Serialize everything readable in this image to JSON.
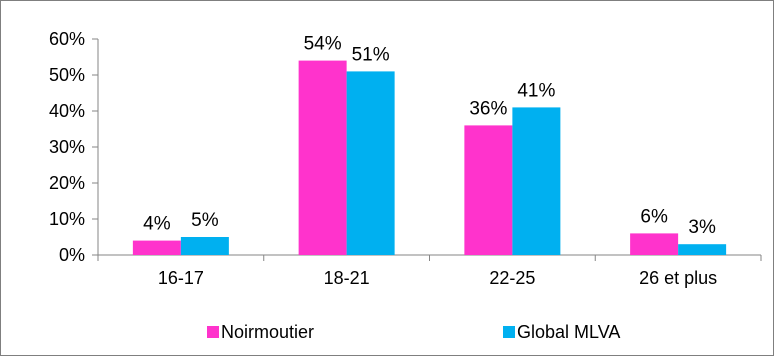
{
  "chart_data": {
    "type": "bar",
    "categories": [
      "16-17",
      "18-21",
      "22-25",
      "26 et plus"
    ],
    "series": [
      {
        "name": "Noirmoutier",
        "color": "#ff33cc",
        "values": [
          4,
          54,
          36,
          6
        ],
        "labels": [
          "4%",
          "54%",
          "36%",
          "6%"
        ]
      },
      {
        "name": "Global MLVA",
        "color": "#00b0f0",
        "values": [
          5,
          51,
          41,
          3
        ],
        "labels": [
          "5%",
          "51%",
          "41%",
          "3%"
        ]
      }
    ],
    "y_ticks": [
      "0%",
      "10%",
      "20%",
      "30%",
      "40%",
      "50%",
      "60%"
    ],
    "ylim": [
      0,
      60
    ],
    "unit": "%",
    "legend_position": "bottom",
    "grid": false
  }
}
